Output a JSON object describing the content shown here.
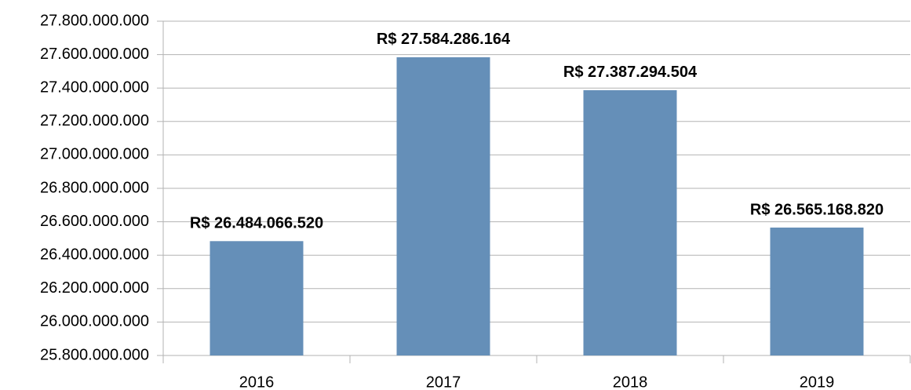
{
  "chart_data": {
    "type": "bar",
    "categories": [
      "2016",
      "2017",
      "2018",
      "2019"
    ],
    "values": [
      26484066520,
      27584286164,
      27387294504,
      26565168820
    ],
    "value_labels": [
      "R$ 26.484.066.520",
      "R$ 27.584.286.164",
      "R$ 27.387.294.504",
      "R$ 26.565.168.820"
    ],
    "color": "#658fb8",
    "ylim": [
      25800000000,
      27800000000
    ],
    "yticks": [
      {
        "value": 25800000000,
        "label": "25.800.000.000"
      },
      {
        "value": 26000000000,
        "label": "26.000.000.000"
      },
      {
        "value": 26200000000,
        "label": "26.200.000.000"
      },
      {
        "value": 26400000000,
        "label": "26.400.000.000"
      },
      {
        "value": 26600000000,
        "label": "26.600.000.000"
      },
      {
        "value": 26800000000,
        "label": "26.800.000.000"
      },
      {
        "value": 27000000000,
        "label": "27.000.000.000"
      },
      {
        "value": 27200000000,
        "label": "27.200.000.000"
      },
      {
        "value": 27400000000,
        "label": "27.400.000.000"
      },
      {
        "value": 27600000000,
        "label": "27.600.000.000"
      },
      {
        "value": 27800000000,
        "label": "27.800.000.000"
      }
    ],
    "grid": true
  }
}
